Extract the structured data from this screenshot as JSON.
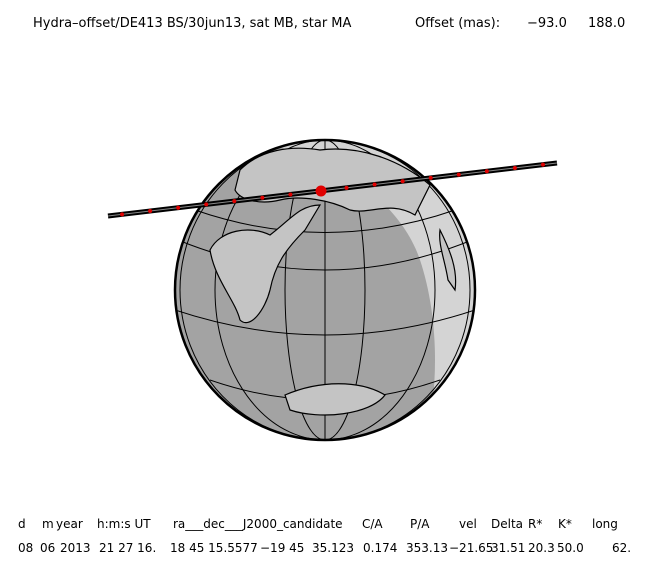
{
  "header": {
    "title": "Hydra–offset/DE413 BS/30jun13, sat MB, star MA",
    "offset_label": "Offset (mas):",
    "offset_x": "−93.0",
    "offset_y": "188.0"
  },
  "table": {
    "columns": [
      "d",
      "m",
      "year",
      "h:m:s UT",
      "ra___dec___J2000_candidate",
      "C/A",
      "P/A",
      "vel",
      "Delta",
      "R*",
      "K*",
      "long"
    ],
    "row": [
      "08",
      "06",
      "2013",
      "21 27 16.",
      "18 45 15.5577",
      "−19 45  35.123",
      "0.174",
      "353.13",
      "−21.65",
      "31.51",
      "20.3",
      "50.0",
      "62."
    ]
  }
}
